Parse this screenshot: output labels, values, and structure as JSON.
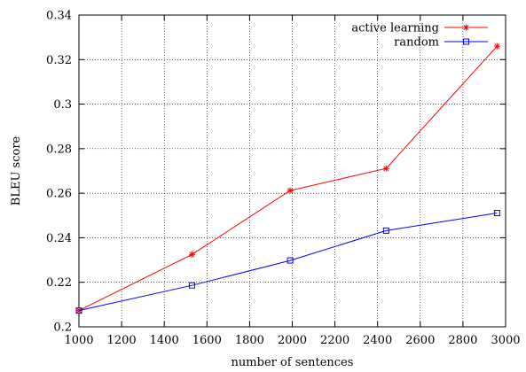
{
  "chart_data": {
    "type": "line",
    "xlabel": "number of sentences",
    "ylabel": "BLEU score",
    "xlim": [
      1000,
      3000
    ],
    "ylim": [
      0.2,
      0.34
    ],
    "xticks": [
      1000,
      1200,
      1400,
      1600,
      1800,
      2000,
      2200,
      2400,
      2600,
      2800,
      3000
    ],
    "yticks": [
      0.2,
      0.22,
      0.24,
      0.26,
      0.28,
      0.3,
      0.32,
      0.34
    ],
    "xtick_labels": [
      "1000",
      "1200",
      "1400",
      "1600",
      "1800",
      "2000",
      "2200",
      "2400",
      "2600",
      "2800",
      "3000"
    ],
    "ytick_labels": [
      "0.2",
      "0.22",
      "0.24",
      "0.26",
      "0.28",
      "0.3",
      "0.32",
      "0.34"
    ],
    "grid": true,
    "legend_position": "top-right",
    "series": [
      {
        "name": "active learning",
        "color": "#ff0000",
        "marker": "star",
        "x": [
          1000,
          1530,
          1990,
          2440,
          2960
        ],
        "y": [
          0.2073,
          0.2325,
          0.2612,
          0.2711,
          0.326
        ]
      },
      {
        "name": "random",
        "color": "#0000ff",
        "marker": "square",
        "x": [
          1000,
          1530,
          1990,
          2440,
          2960
        ],
        "y": [
          0.2073,
          0.2186,
          0.2298,
          0.2432,
          0.2511
        ]
      }
    ]
  }
}
